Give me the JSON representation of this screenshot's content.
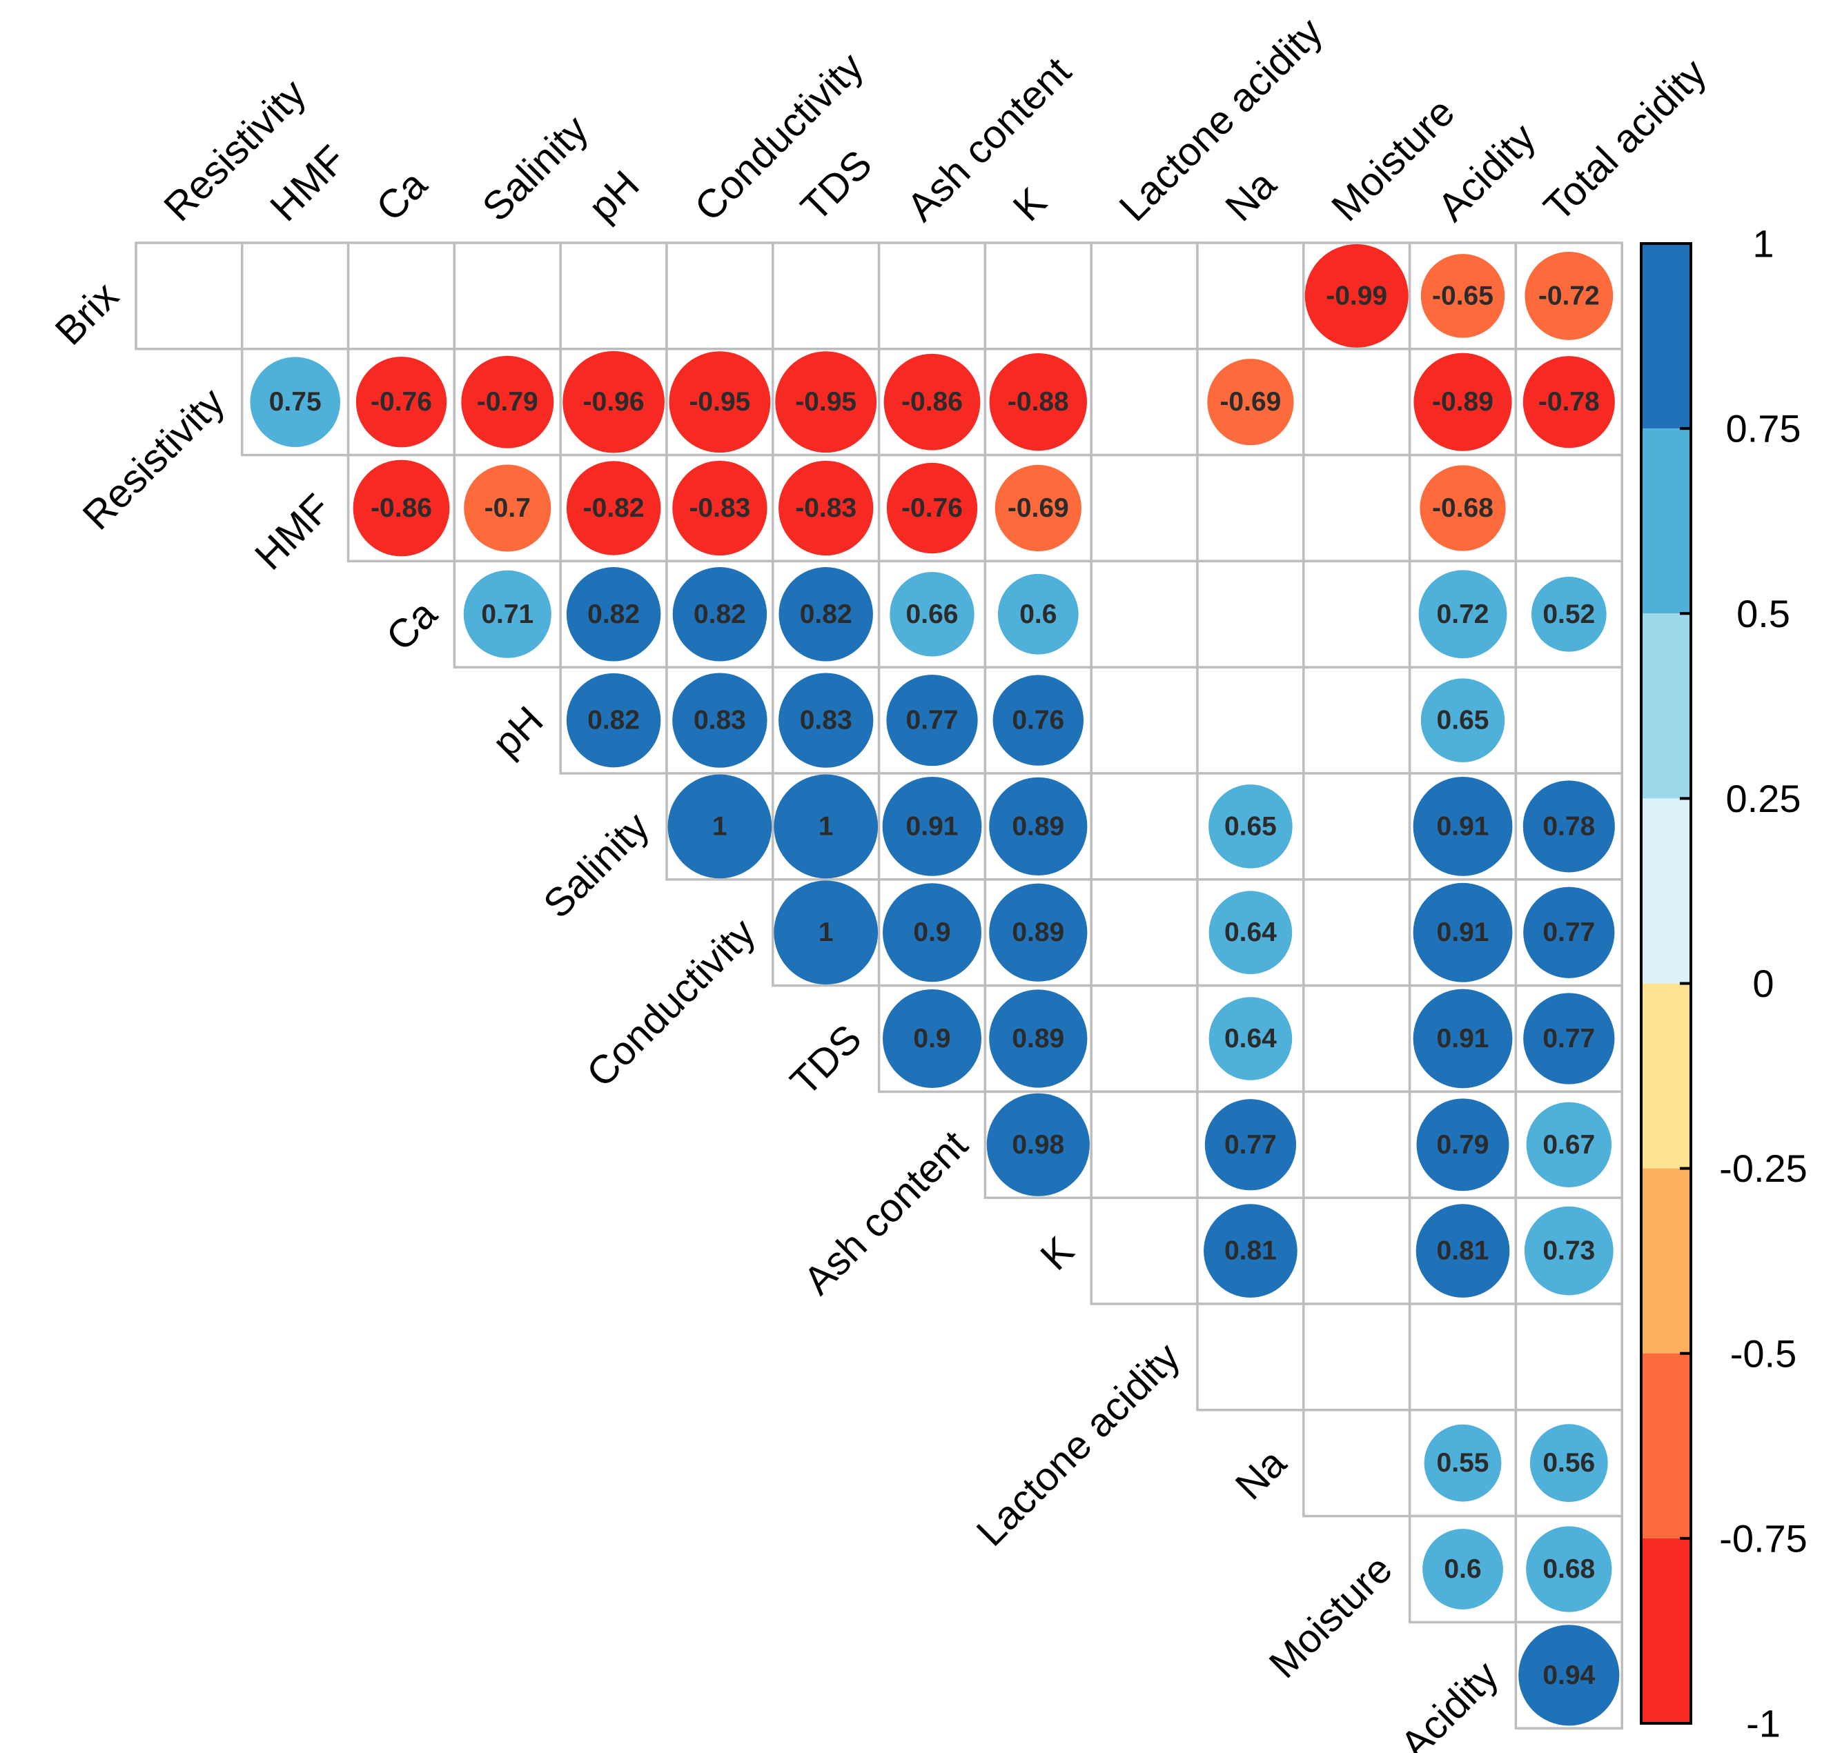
{
  "chart_data": {
    "type": "heatmap",
    "subtype": "correlation-upper-triangle-circles",
    "row_labels": [
      "Brix",
      "Resistivity",
      "HMF",
      "Ca",
      "pH",
      "Salinity",
      "Conductivity",
      "TDS",
      "Ash content",
      "K",
      "Lactone acidity",
      "Na",
      "Moisture",
      "Acidity"
    ],
    "col_labels": [
      "Resistivity",
      "HMF",
      "Ca",
      "Salinity",
      "pH",
      "Conductivity",
      "TDS",
      "Ash content",
      "K",
      "Lactone acidity",
      "Na",
      "Moisture",
      "Acidity",
      "Total acidity"
    ],
    "matrix": [
      [
        null,
        null,
        null,
        null,
        null,
        null,
        null,
        null,
        null,
        null,
        null,
        -0.99,
        -0.65,
        -0.72
      ],
      [
        null,
        0.75,
        -0.76,
        -0.79,
        -0.96,
        -0.95,
        -0.95,
        -0.86,
        -0.88,
        null,
        -0.69,
        null,
        -0.89,
        -0.78
      ],
      [
        null,
        null,
        -0.86,
        -0.7,
        -0.82,
        -0.83,
        -0.83,
        -0.76,
        -0.69,
        null,
        null,
        null,
        -0.68,
        null
      ],
      [
        null,
        null,
        null,
        0.71,
        0.82,
        0.82,
        0.82,
        0.66,
        0.6,
        null,
        null,
        null,
        0.72,
        0.52
      ],
      [
        null,
        null,
        null,
        null,
        0.82,
        0.83,
        0.83,
        0.77,
        0.76,
        null,
        null,
        null,
        0.65,
        null
      ],
      [
        null,
        null,
        null,
        null,
        null,
        1,
        1,
        0.91,
        0.89,
        null,
        0.65,
        null,
        0.91,
        0.78
      ],
      [
        null,
        null,
        null,
        null,
        null,
        null,
        1,
        0.9,
        0.89,
        null,
        0.64,
        null,
        0.91,
        0.77
      ],
      [
        null,
        null,
        null,
        null,
        null,
        null,
        null,
        0.9,
        0.89,
        null,
        0.64,
        null,
        0.91,
        0.77
      ],
      [
        null,
        null,
        null,
        null,
        null,
        null,
        null,
        null,
        0.98,
        null,
        0.77,
        null,
        0.79,
        0.67
      ],
      [
        null,
        null,
        null,
        null,
        null,
        null,
        null,
        null,
        null,
        null,
        0.81,
        null,
        0.81,
        0.73
      ],
      [
        null,
        null,
        null,
        null,
        null,
        null,
        null,
        null,
        null,
        null,
        null,
        null,
        null,
        null
      ],
      [
        null,
        null,
        null,
        null,
        null,
        null,
        null,
        null,
        null,
        null,
        null,
        null,
        0.55,
        0.56
      ],
      [
        null,
        null,
        null,
        null,
        null,
        null,
        null,
        null,
        null,
        null,
        null,
        null,
        0.6,
        0.68
      ],
      [
        null,
        null,
        null,
        null,
        null,
        null,
        null,
        null,
        null,
        null,
        null,
        null,
        null,
        0.94
      ]
    ],
    "colorbar": {
      "range": [
        -1,
        1
      ],
      "ticks": [
        "1",
        "0.75",
        "0.5",
        "0.25",
        "0",
        "-0.25",
        "-0.5",
        "-0.75",
        "-1"
      ],
      "tick_values": [
        1,
        0.75,
        0.5,
        0.25,
        0,
        -0.25,
        -0.5,
        -0.75,
        -1
      ],
      "bins": [
        {
          "from": 0.75,
          "to": 1,
          "color": "#1f72b8"
        },
        {
          "from": 0.5,
          "to": 0.75,
          "color": "#4fb0d9"
        },
        {
          "from": 0.25,
          "to": 0.5,
          "color": "#9dd9ea"
        },
        {
          "from": 0,
          "to": 0.25,
          "color": "#dcf1f8"
        },
        {
          "from": -0.25,
          "to": 0,
          "color": "#fde28f"
        },
        {
          "from": -0.5,
          "to": -0.25,
          "color": "#fdb05c"
        },
        {
          "from": -0.75,
          "to": -0.5,
          "color": "#fd6a3c"
        },
        {
          "from": -1,
          "to": -0.75,
          "color": "#f62a22"
        }
      ]
    },
    "grid_color": "#bdbdbd"
  }
}
